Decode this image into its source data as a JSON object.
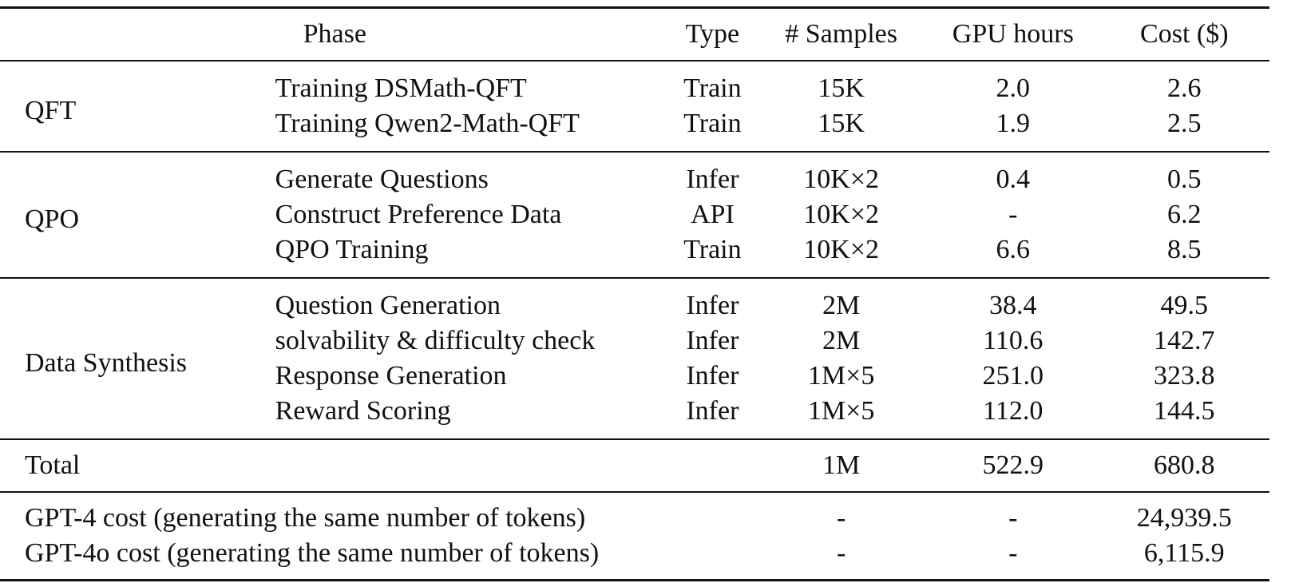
{
  "header": {
    "phase": "Phase",
    "type": "Type",
    "samples": "# Samples",
    "gpu_hours": "GPU hours",
    "cost": "Cost ($)"
  },
  "groups": [
    {
      "name": "QFT",
      "rows": [
        {
          "step": "Training DSMath-QFT",
          "type": "Train",
          "samples": "15K",
          "gpu": "2.0",
          "cost": "2.6"
        },
        {
          "step": "Training Qwen2-Math-QFT",
          "type": "Train",
          "samples": "15K",
          "gpu": "1.9",
          "cost": "2.5"
        }
      ]
    },
    {
      "name": "QPO",
      "rows": [
        {
          "step": "Generate Questions",
          "type": "Infer",
          "samples": "10K×2",
          "gpu": "0.4",
          "cost": "0.5"
        },
        {
          "step": "Construct Preference Data",
          "type": "API",
          "samples": "10K×2",
          "gpu": "-",
          "cost": "6.2"
        },
        {
          "step": "QPO Training",
          "type": "Train",
          "samples": "10K×2",
          "gpu": "6.6",
          "cost": "8.5"
        }
      ]
    },
    {
      "name": "Data Synthesis",
      "rows": [
        {
          "step": "Question Generation",
          "type": "Infer",
          "samples": "2M",
          "gpu": "38.4",
          "cost": "49.5"
        },
        {
          "step": "solvability & difficulty check",
          "type": "Infer",
          "samples": "2M",
          "gpu": "110.6",
          "cost": "142.7"
        },
        {
          "step": "Response Generation",
          "type": "Infer",
          "samples": "1M×5",
          "gpu": "251.0",
          "cost": "323.8"
        },
        {
          "step": "Reward Scoring",
          "type": "Infer",
          "samples": "1M×5",
          "gpu": "112.0",
          "cost": "144.5"
        }
      ]
    }
  ],
  "total": {
    "label": "Total",
    "samples": "1M",
    "gpu": "522.9",
    "cost": "680.8"
  },
  "comparisons": [
    {
      "label": "GPT-4 cost (generating the same number of tokens)",
      "samples": "-",
      "gpu": "-",
      "cost": "24,939.5"
    },
    {
      "label": "GPT-4o cost (generating the same number of tokens)",
      "samples": "-",
      "gpu": "-",
      "cost": "6,115.9"
    }
  ]
}
